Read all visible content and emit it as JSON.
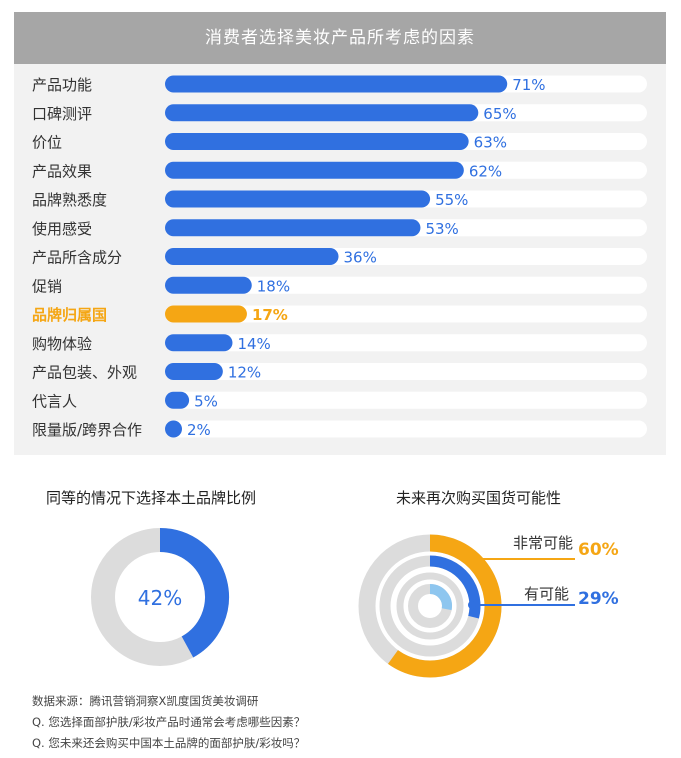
{
  "header": {
    "title": "消费者选择美妆产品所考虑的因素"
  },
  "colors": {
    "blue": "#3070e0",
    "orange": "#f5a614",
    "gray": "#dcdcdc",
    "lightblue": "#8ec6ef"
  },
  "chart_data": [
    {
      "type": "bar",
      "orientation": "horizontal",
      "title": "消费者选择美妆产品所考虑的因素",
      "categories": [
        "产品功能",
        "口碑测评",
        "价位",
        "产品效果",
        "品牌熟悉度",
        "使用感受",
        "产品所含成分",
        "促销",
        "品牌归属国",
        "购物体验",
        "产品包装、外观",
        "代言人",
        "限量版/跨界合作"
      ],
      "values": [
        71,
        65,
        63,
        62,
        55,
        53,
        36,
        18,
        17,
        14,
        12,
        5,
        2
      ],
      "labels": [
        "71%",
        "65%",
        "63%",
        "62%",
        "55%",
        "53%",
        "36%",
        "18%",
        "17%",
        "14%",
        "12%",
        "5%",
        "2%"
      ],
      "highlight_index": 8,
      "xlim": [
        0,
        100
      ]
    },
    {
      "type": "pie",
      "style": "donut",
      "title": "同等的情况下选择本土品牌比例",
      "values": [
        42,
        58
      ],
      "center_label": "42%"
    },
    {
      "type": "pie",
      "style": "concentric-rings",
      "title": "未来再次购买国货可能性",
      "series": [
        {
          "name": "非常可能",
          "value": 60,
          "label": "60%"
        },
        {
          "name": "有可能",
          "value": 29,
          "label": "29%"
        }
      ]
    }
  ],
  "footnotes": [
    "数据来源：腾讯营销洞察X凯度国货美妆调研",
    "Q. 您选择面部护肤/彩妆产品时通常会考虑哪些因素？",
    "Q. 您未来还会购买中国本土品牌的面部护肤/彩妆吗？"
  ]
}
